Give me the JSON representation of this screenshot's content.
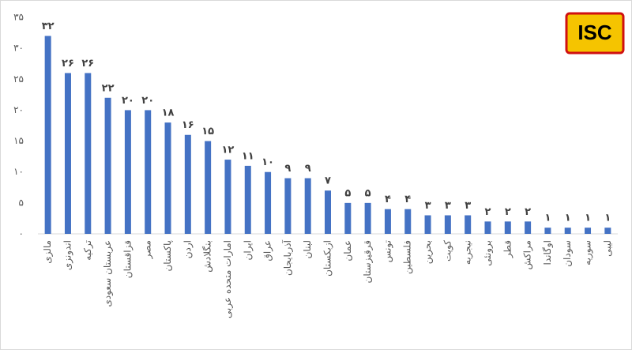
{
  "logo": "ISC",
  "chart_data": {
    "type": "bar",
    "categories": [
      "مالزی",
      "اندونزی",
      "ترکیه",
      "عربستان سعودی",
      "قزاقستان",
      "مصر",
      "پاکستان",
      "اردن",
      "بنگلادش",
      "امارات متحده عربی",
      "ایران",
      "عراق",
      "آذربایجان",
      "لبنان",
      "ازبکستان",
      "عمان",
      "قرقیزستان",
      "تونس",
      "فلسطین",
      "بحرین",
      "کویت",
      "نیجریه",
      "برونئی",
      "قطر",
      "مراکش",
      "اوگاندا",
      "سودان",
      "سوریه",
      "لیبی"
    ],
    "values": [
      32,
      26,
      26,
      22,
      20,
      20,
      18,
      16,
      15,
      12,
      11,
      10,
      9,
      9,
      7,
      5,
      5,
      4,
      4,
      3,
      3,
      3,
      2,
      2,
      2,
      1,
      1,
      1,
      1
    ],
    "value_labels": [
      "۳۲",
      "۲۶",
      "۲۶",
      "۲۲",
      "۲۰",
      "۲۰",
      "۱۸",
      "۱۶",
      "۱۵",
      "۱۲",
      "۱۱",
      "۱۰",
      "۹",
      "۹",
      "۷",
      "۵",
      "۵",
      "۴",
      "۴",
      "۳",
      "۳",
      "۳",
      "۲",
      "۲",
      "۲",
      "۱",
      "۱",
      "۱",
      "۱"
    ],
    "color": "#4472c4",
    "ylim": [
      0,
      35
    ],
    "yticks": [
      {
        "value": 0,
        "label": "۰"
      },
      {
        "value": 5,
        "label": "۵"
      },
      {
        "value": 10,
        "label": "۱۰"
      },
      {
        "value": 15,
        "label": "۱۵"
      },
      {
        "value": 20,
        "label": "۲۰"
      },
      {
        "value": 25,
        "label": "۲۵"
      },
      {
        "value": 30,
        "label": "۳۰"
      },
      {
        "value": 35,
        "label": "۳۵"
      }
    ],
    "grid": false
  }
}
